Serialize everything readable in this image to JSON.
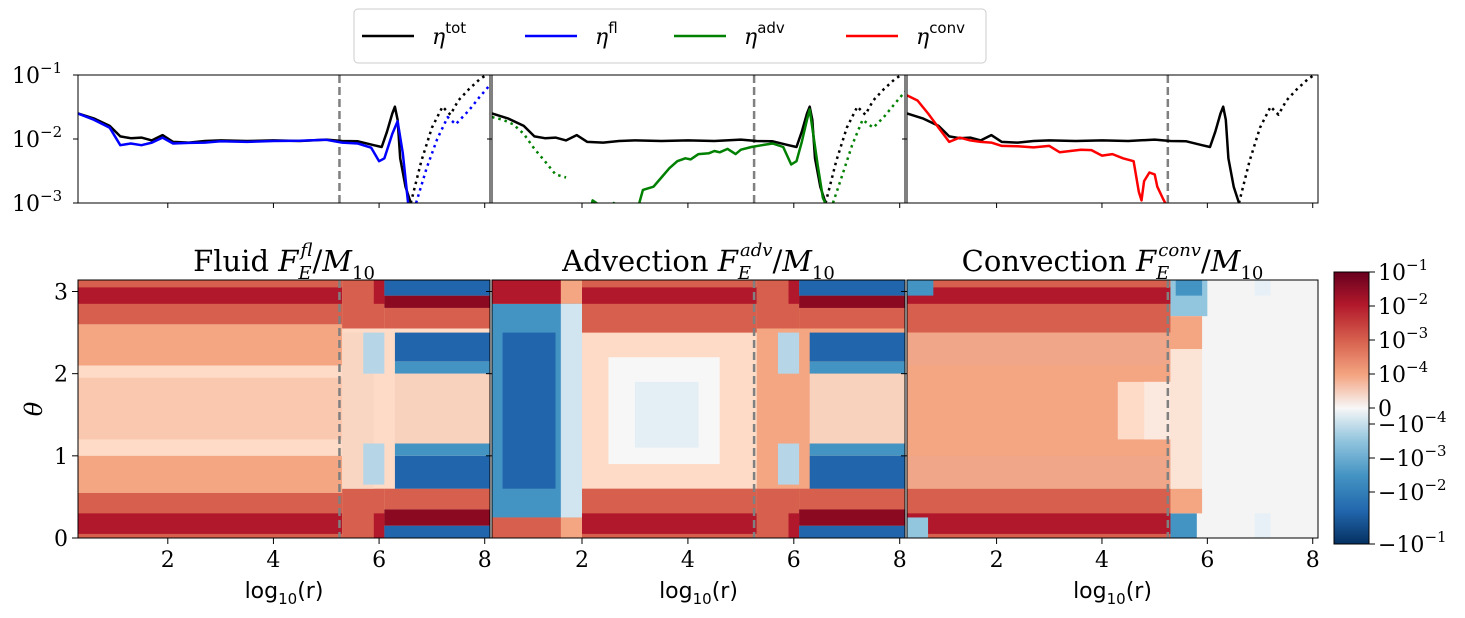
{
  "chart_data": {
    "type": "figure",
    "legend": {
      "location": "top-center",
      "entries": [
        {
          "base": "η",
          "sup": "tot",
          "color": "#000000"
        },
        {
          "base": "η",
          "sup": "fl",
          "color": "#0000ff"
        },
        {
          "base": "η",
          "sup": "adv",
          "color": "#008000"
        },
        {
          "base": "η",
          "sup": "conv",
          "color": "#ff0000"
        }
      ]
    },
    "top_panels": {
      "type": "line",
      "yscale": "log",
      "ylim": [
        0.001,
        0.1
      ],
      "xlim": [
        0.3,
        8.1
      ],
      "ytick_labels": [
        {
          "base": "10",
          "exp": "−1",
          "value": 0.1
        },
        {
          "base": "10",
          "exp": "−2",
          "value": 0.01
        },
        {
          "base": "10",
          "exp": "−3",
          "value": 0.001
        }
      ],
      "vline_x": 5.25,
      "panels": [
        {
          "name": "fluid",
          "series": [
            {
              "name": "η_tot",
              "color": "#000000",
              "style": "solid",
              "x": [
                0.3,
                0.6,
                0.9,
                1.1,
                1.3,
                1.5,
                1.7,
                1.9,
                2.1,
                2.4,
                2.7,
                3.0,
                3.5,
                4.0,
                4.5,
                5.0,
                5.3,
                5.6,
                5.9,
                6.05,
                6.15,
                6.25,
                6.3,
                6.35,
                6.4,
                6.5,
                6.6
              ],
              "y": [
                0.025,
                0.021,
                0.016,
                0.011,
                0.0103,
                0.0105,
                0.0095,
                0.0115,
                0.009,
                0.0088,
                0.0093,
                0.0095,
                0.0093,
                0.0095,
                0.0093,
                0.0098,
                0.0093,
                0.0092,
                0.008,
                0.0075,
                0.013,
                0.025,
                0.032,
                0.02,
                0.005,
                0.0018,
                0.001
              ]
            },
            {
              "name": "η_tot dotted",
              "color": "#000000",
              "style": "dotted",
              "x": [
                6.6,
                6.8,
                7.0,
                7.2,
                7.35,
                7.5,
                7.7,
                7.9,
                8.1
              ],
              "y": [
                0.001,
                0.0045,
                0.015,
                0.032,
                0.024,
                0.04,
                0.06,
                0.085,
                0.11
              ]
            },
            {
              "name": "η_fl",
              "color": "#0000ff",
              "style": "solid",
              "x": [
                0.3,
                0.6,
                0.9,
                1.1,
                1.3,
                1.5,
                1.7,
                1.9,
                2.1,
                2.4,
                2.7,
                3.0,
                3.5,
                4.0,
                4.5,
                5.0,
                5.3,
                5.6,
                5.85,
                6.0,
                6.1,
                6.25,
                6.35,
                6.45,
                6.55
              ],
              "y": [
                0.025,
                0.02,
                0.015,
                0.008,
                0.0085,
                0.008,
                0.0088,
                0.0105,
                0.0085,
                0.0087,
                0.0088,
                0.0092,
                0.009,
                0.0093,
                0.0094,
                0.0097,
                0.0088,
                0.0085,
                0.0073,
                0.0045,
                0.005,
                0.012,
                0.019,
                0.006,
                0.001
              ]
            },
            {
              "name": "η_fl dotted",
              "color": "#0000ff",
              "style": "dotted",
              "x": [
                6.7,
                6.9,
                7.1,
                7.3,
                7.45,
                7.7,
                7.9,
                8.1
              ],
              "y": [
                0.001,
                0.0035,
                0.01,
                0.022,
                0.017,
                0.028,
                0.045,
                0.07
              ]
            }
          ]
        },
        {
          "name": "advection",
          "series": [
            {
              "name": "η_tot",
              "color": "#000000",
              "style": "solid",
              "x": [
                0.3,
                0.6,
                0.9,
                1.1,
                1.3,
                1.5,
                1.7,
                1.9,
                2.1,
                2.4,
                2.7,
                3.0,
                3.5,
                4.0,
                4.5,
                5.0,
                5.3,
                5.6,
                5.9,
                6.05,
                6.15,
                6.25,
                6.3,
                6.35,
                6.4,
                6.5,
                6.6
              ],
              "y": [
                0.025,
                0.021,
                0.016,
                0.011,
                0.0103,
                0.0105,
                0.0095,
                0.0115,
                0.009,
                0.0088,
                0.0093,
                0.0095,
                0.0093,
                0.0095,
                0.0093,
                0.0098,
                0.0093,
                0.0092,
                0.008,
                0.0075,
                0.013,
                0.025,
                0.032,
                0.02,
                0.005,
                0.0018,
                0.001
              ]
            },
            {
              "name": "η_tot dotted",
              "color": "#000000",
              "style": "dotted",
              "x": [
                6.6,
                6.8,
                7.0,
                7.2,
                7.35,
                7.5,
                7.7,
                7.9,
                8.1
              ],
              "y": [
                0.001,
                0.0045,
                0.015,
                0.032,
                0.024,
                0.04,
                0.06,
                0.085,
                0.11
              ]
            },
            {
              "name": "η_adv dotted left",
              "color": "#008000",
              "style": "dotted",
              "x": [
                0.3,
                0.5,
                0.7,
                0.9,
                1.1,
                1.3,
                1.5,
                1.7
              ],
              "y": [
                0.022,
                0.02,
                0.017,
                0.012,
                0.007,
                0.0045,
                0.0028,
                0.0025
              ]
            },
            {
              "name": "η_adv",
              "color": "#008000",
              "style": "solid",
              "x": [
                2.15,
                2.2,
                2.35,
                2.5,
                2.6,
                2.75,
                2.9,
                3.05,
                3.15,
                3.35,
                3.5,
                3.65,
                3.8,
                3.95,
                4.05,
                4.2,
                4.4,
                4.5,
                4.6,
                4.75,
                4.9,
                5.0,
                5.2,
                5.4,
                5.6,
                5.8,
                5.95,
                6.05,
                6.15,
                6.25,
                6.3,
                6.35,
                6.45,
                6.55,
                6.65
              ],
              "y": [
                0.0007,
                0.0011,
                0.0009,
                0.0007,
                0.001,
                0.00075,
                0.0009,
                0.0008,
                0.0016,
                0.0018,
                0.0025,
                0.0035,
                0.0045,
                0.005,
                0.0048,
                0.0058,
                0.006,
                0.0065,
                0.0062,
                0.007,
                0.0058,
                0.0068,
                0.0075,
                0.008,
                0.0085,
                0.0075,
                0.004,
                0.0045,
                0.009,
                0.02,
                0.029,
                0.015,
                0.004,
                0.0012,
                0.0008
              ]
            },
            {
              "name": "η_adv dotted right",
              "color": "#008000",
              "style": "dotted",
              "x": [
                6.7,
                6.9,
                7.1,
                7.3,
                7.5,
                7.7,
                7.9,
                8.1
              ],
              "y": [
                0.0008,
                0.0025,
                0.008,
                0.02,
                0.015,
                0.022,
                0.035,
                0.055
              ]
            }
          ]
        },
        {
          "name": "convection",
          "series": [
            {
              "name": "η_tot",
              "color": "#000000",
              "style": "solid",
              "x": [
                0.3,
                0.6,
                0.9,
                1.1,
                1.3,
                1.5,
                1.7,
                1.9,
                2.1,
                2.4,
                2.7,
                3.0,
                3.5,
                4.0,
                4.5,
                5.0,
                5.3,
                5.6,
                5.9,
                6.05,
                6.15,
                6.25,
                6.3,
                6.35,
                6.4,
                6.5,
                6.6
              ],
              "y": [
                0.025,
                0.021,
                0.016,
                0.011,
                0.0103,
                0.0105,
                0.0095,
                0.0115,
                0.009,
                0.0088,
                0.0093,
                0.0095,
                0.0093,
                0.0095,
                0.0093,
                0.0098,
                0.0093,
                0.0092,
                0.008,
                0.0075,
                0.013,
                0.025,
                0.032,
                0.02,
                0.005,
                0.0018,
                0.001
              ]
            },
            {
              "name": "η_tot dotted",
              "color": "#000000",
              "style": "dotted",
              "x": [
                6.6,
                6.8,
                7.0,
                7.2,
                7.35,
                7.5,
                7.7,
                7.9,
                8.1
              ],
              "y": [
                0.001,
                0.0045,
                0.015,
                0.032,
                0.024,
                0.04,
                0.06,
                0.085,
                0.11
              ]
            },
            {
              "name": "η_conv",
              "color": "#ff0000",
              "style": "solid",
              "x": [
                0.3,
                0.5,
                0.7,
                0.9,
                1.1,
                1.3,
                1.5,
                1.7,
                1.9,
                2.1,
                2.4,
                2.7,
                3.0,
                3.2,
                3.4,
                3.6,
                3.8,
                4.0,
                4.2,
                4.4,
                4.6,
                4.7,
                4.75,
                4.8,
                4.9,
                5.0,
                5.05,
                5.15,
                5.2
              ],
              "y": [
                0.048,
                0.04,
                0.025,
                0.015,
                0.009,
                0.0105,
                0.0095,
                0.009,
                0.0088,
                0.0078,
                0.0077,
                0.0074,
                0.0078,
                0.0062,
                0.0065,
                0.0068,
                0.0067,
                0.0055,
                0.0058,
                0.005,
                0.0045,
                0.0015,
                0.0011,
                0.0022,
                0.003,
                0.0028,
                0.0018,
                0.0012,
                0.001
              ]
            }
          ]
        }
      ]
    },
    "heatmaps": {
      "type": "heatmap",
      "ylabel": "θ",
      "xlabel": {
        "base": "log",
        "sub": "10",
        "tail": "(r)"
      },
      "xlim": [
        0.3,
        8.1
      ],
      "ylim": [
        0,
        3.14
      ],
      "xticks": [
        2,
        4,
        6,
        8
      ],
      "yticks": [
        0,
        1,
        2,
        3
      ],
      "vline_x": 5.25,
      "panels": [
        {
          "title_prefix": "Fluid",
          "title_sub": "fl"
        },
        {
          "title_prefix": "Advection",
          "title_sub": "adv"
        },
        {
          "title_prefix": "Convection",
          "title_sub": "conv"
        }
      ]
    },
    "colorbar": {
      "scale": "symlog",
      "cmap": "RdBu_r",
      "ticks": [
        {
          "sign": "",
          "base": "10",
          "exp": "−1"
        },
        {
          "sign": "",
          "base": "10",
          "exp": "−2"
        },
        {
          "sign": "",
          "base": "10",
          "exp": "−3"
        },
        {
          "sign": "",
          "base": "10",
          "exp": "−4"
        },
        {
          "sign": "",
          "base": "0",
          "exp": ""
        },
        {
          "sign": "−",
          "base": "10",
          "exp": "−4"
        },
        {
          "sign": "−",
          "base": "10",
          "exp": "−3"
        },
        {
          "sign": "−",
          "base": "10",
          "exp": "−2"
        },
        {
          "sign": "−",
          "base": "10",
          "exp": "−1"
        }
      ]
    }
  }
}
